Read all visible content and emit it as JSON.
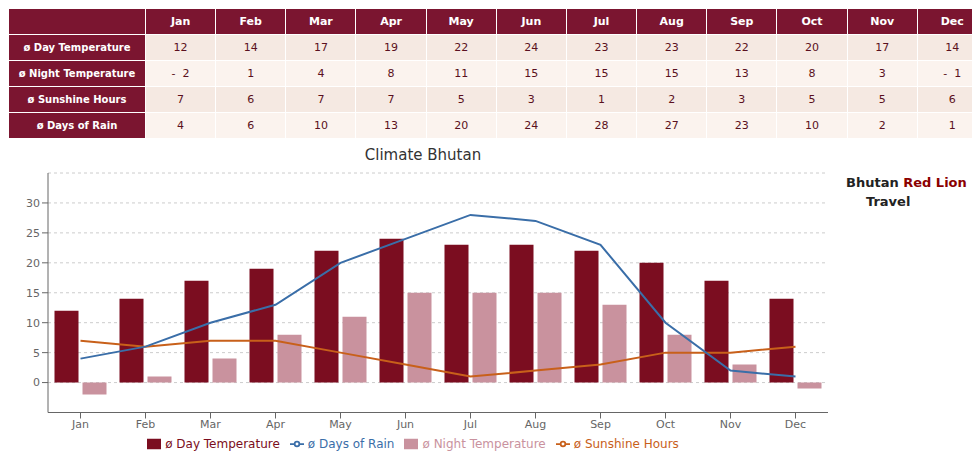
{
  "chart_data": {
    "type": "bar",
    "title": "Climate Bhutan",
    "categories": [
      "Jan",
      "Feb",
      "Mar",
      "Apr",
      "May",
      "Jun",
      "Jul",
      "Aug",
      "Sep",
      "Oct",
      "Nov",
      "Dec"
    ],
    "series": [
      {
        "name": "ø Day Temperature",
        "type": "bar",
        "color": "#7B0D20",
        "values": [
          12,
          14,
          17,
          19,
          22,
          24,
          23,
          23,
          22,
          20,
          17,
          14
        ]
      },
      {
        "name": "ø Night Temperature",
        "type": "bar",
        "color": "#C9929E",
        "values": [
          -2,
          1,
          4,
          8,
          11,
          15,
          15,
          15,
          13,
          8,
          3,
          -1
        ],
        "value_labels": [
          "-  2",
          "1",
          "4",
          "8",
          "11",
          "15",
          "15",
          "15",
          "13",
          "8",
          "3",
          "-  1"
        ]
      },
      {
        "name": "ø Sunshine Hours",
        "type": "line",
        "color": "#C8601A",
        "values": [
          7,
          6,
          7,
          7,
          5,
          3,
          1,
          2,
          3,
          5,
          5,
          6
        ]
      },
      {
        "name": "ø Days of Rain",
        "type": "line",
        "color": "#3A6EA8",
        "values": [
          4,
          6,
          10,
          13,
          20,
          24,
          28,
          27,
          23,
          10,
          2,
          1
        ]
      }
    ],
    "ylim": [
      -5,
      35
    ],
    "yticks": [
      0,
      5,
      10,
      15,
      20,
      25,
      30
    ],
    "grid": true,
    "legend": "bottom",
    "annotations": [
      "Bhutan",
      "Red Lion",
      "Travel"
    ]
  }
}
